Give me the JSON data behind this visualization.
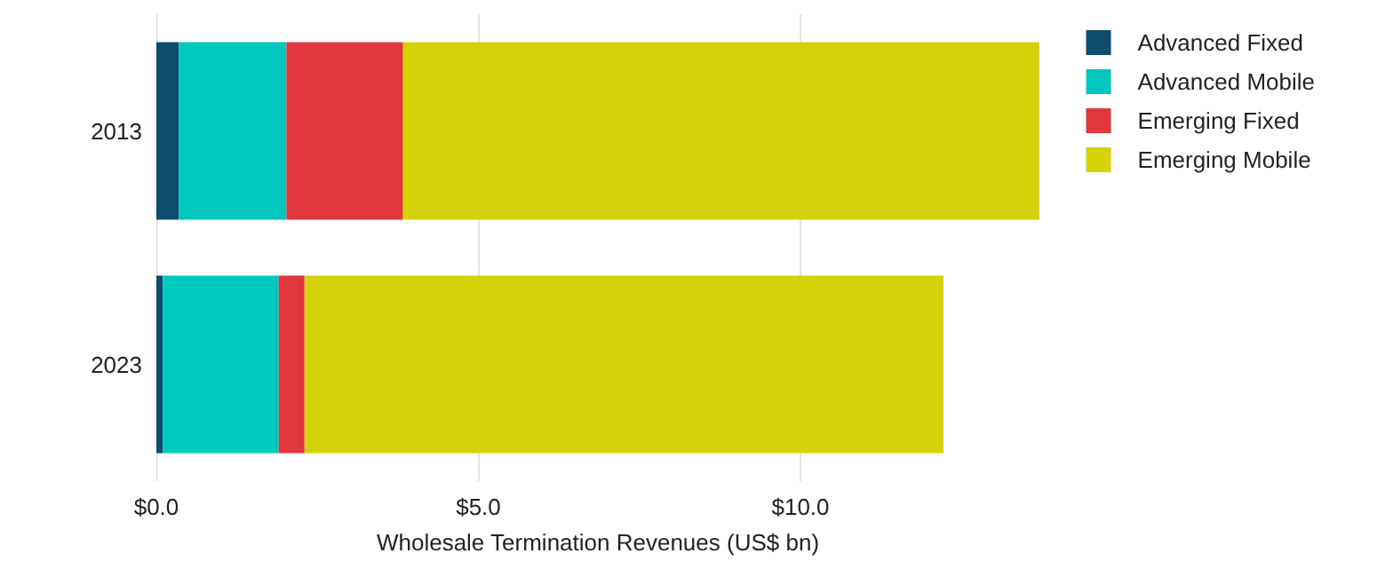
{
  "chart_data": {
    "type": "bar",
    "orientation": "horizontal",
    "stacked": true,
    "xlabel": "Wholesale Termination Revenues (US$ bn)",
    "categories": [
      "2013",
      "2023"
    ],
    "series": [
      {
        "name": "Advanced Fixed",
        "color": "#0e4c6e",
        "values": [
          0.35,
          0.1
        ]
      },
      {
        "name": "Advanced Mobile",
        "color": "#00c8bf",
        "values": [
          1.67,
          1.8
        ]
      },
      {
        "name": "Emerging Fixed",
        "color": "#e0363e",
        "values": [
          1.81,
          0.4
        ]
      },
      {
        "name": "Emerging Mobile",
        "color": "#d5d20a",
        "values": [
          9.88,
          9.92
        ]
      }
    ],
    "xlim": [
      0,
      13.71
    ],
    "xticks": [
      {
        "value": 0,
        "label": "$0.0"
      },
      {
        "value": 5,
        "label": "$5.0"
      },
      {
        "value": 10,
        "label": "$10.0"
      }
    ],
    "grid": "x",
    "legend": "top right"
  }
}
